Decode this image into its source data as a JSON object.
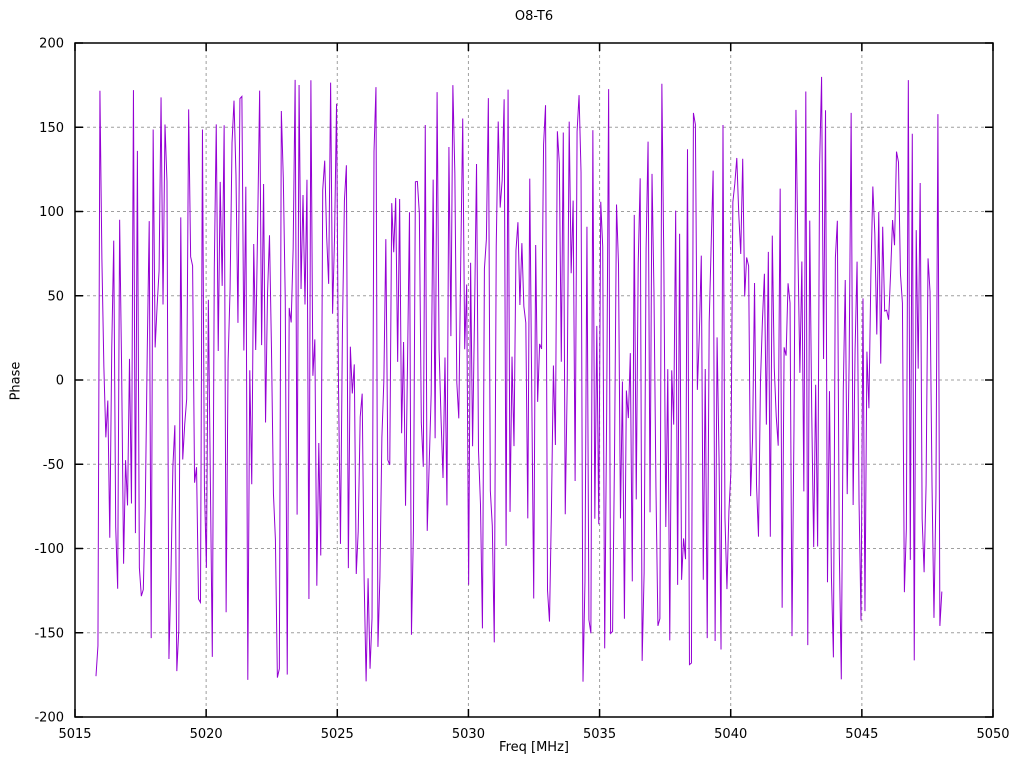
{
  "chart_data": {
    "type": "line",
    "title": "O8-T6",
    "xlabel": "Freq [MHz]",
    "ylabel": "Phase",
    "xlim": [
      5015,
      5050
    ],
    "ylim": [
      -200,
      200
    ],
    "x_ticks": [
      5015,
      5020,
      5025,
      5030,
      5035,
      5040,
      5045,
      5050
    ],
    "y_ticks": [
      -200,
      -150,
      -100,
      -50,
      0,
      50,
      100,
      150,
      200
    ],
    "grid": true,
    "grid_style": "dashed",
    "grid_color": "#9f9f9f",
    "border_color": "#000000",
    "legend": "none",
    "series": [
      {
        "name": "phase",
        "color": "#9400D3",
        "x_start": 5015.8,
        "x_end": 5048.05,
        "n_points": 430,
        "y_min": -180,
        "y_max": 180,
        "pattern": "noise-like wrapped interferometric phase, uniformly distributed between -180 and +180 degrees, connected point-to-point producing dense near-vertical strokes",
        "seed": 7
      }
    ]
  }
}
